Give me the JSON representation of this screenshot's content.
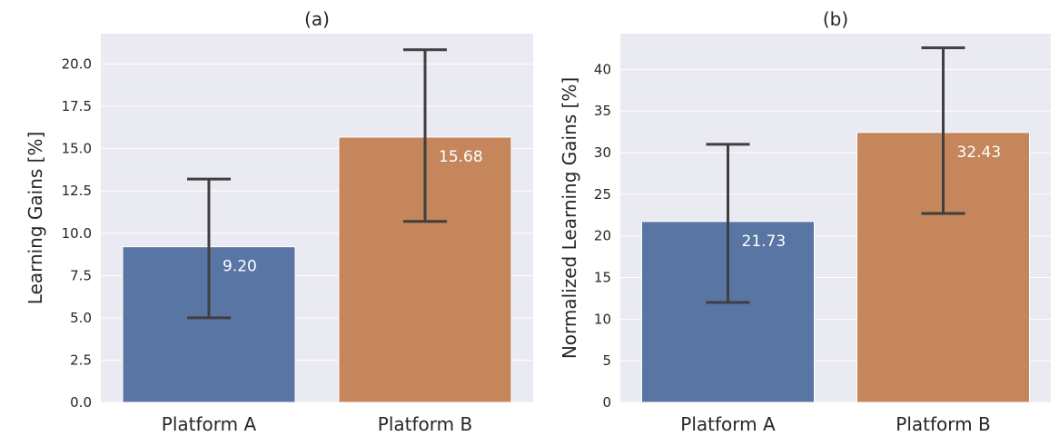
{
  "chart_data": [
    {
      "type": "bar",
      "title": "(a)",
      "xlabel": "",
      "ylabel": "Learning Gains [%]",
      "categories": [
        "Platform A",
        "Platform B"
      ],
      "values": [
        9.2,
        15.68
      ],
      "value_labels": [
        "9.20",
        "15.68"
      ],
      "error_bars": [
        [
          5.0,
          13.2
        ],
        [
          10.7,
          20.85
        ]
      ],
      "ylim": [
        0,
        21.8
      ],
      "yticks": [
        0.0,
        2.5,
        5.0,
        7.5,
        10.0,
        12.5,
        15.0,
        17.5,
        20.0
      ],
      "ytick_labels": [
        "0.0",
        "2.5",
        "5.0",
        "7.5",
        "10.0",
        "12.5",
        "15.0",
        "17.5",
        "20.0"
      ],
      "colors": [
        "#5875a4",
        "#c4865a"
      ],
      "grid": true
    },
    {
      "type": "bar",
      "title": "(b)",
      "xlabel": "",
      "ylabel": "Normalized Learning Gains [%]",
      "categories": [
        "Platform A",
        "Platform B"
      ],
      "values": [
        21.73,
        32.43
      ],
      "value_labels": [
        "21.73",
        "32.43"
      ],
      "error_bars": [
        [
          12.0,
          31.0
        ],
        [
          22.7,
          42.6
        ]
      ],
      "ylim": [
        0,
        44.3
      ],
      "yticks": [
        0,
        5,
        10,
        15,
        20,
        25,
        30,
        35,
        40
      ],
      "ytick_labels": [
        "0",
        "5",
        "10",
        "15",
        "20",
        "25",
        "30",
        "35",
        "40"
      ],
      "colors": [
        "#5875a4",
        "#c4865a"
      ],
      "grid": true
    }
  ]
}
